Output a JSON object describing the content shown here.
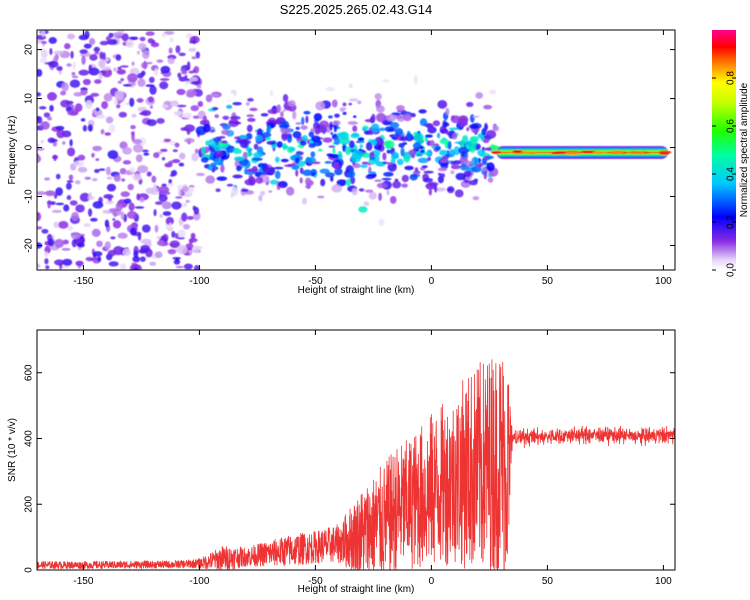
{
  "chart_data": [
    {
      "type": "heatmap",
      "title": "S225.2025.265.02.43.G14",
      "xlabel": "Height of straight line (km)",
      "ylabel": "Frequency (Hz)",
      "xlim": [
        -170,
        105
      ],
      "ylim": [
        -25,
        24
      ],
      "xticks": [
        -150,
        -100,
        -50,
        0,
        50,
        100
      ],
      "yticks": [
        -20,
        -10,
        0,
        10,
        20
      ],
      "colorbar": {
        "label": "Normalized spectral amplitude",
        "range": [
          0,
          1
        ],
        "ticks": [
          "0.0",
          "0.2",
          "0.4",
          "0.6",
          "0.8"
        ],
        "tick_values": [
          0,
          0.2,
          0.4,
          0.6,
          0.8
        ]
      },
      "regions": [
        {
          "x": [
            -170,
            -100
          ],
          "freq_center": 0,
          "freq_spread": 24,
          "amplitude": 0.1,
          "pattern": "diffuse noise"
        },
        {
          "x": [
            -100,
            28
          ],
          "freq_center": 0,
          "freq_spread": 10,
          "amplitude": 0.25,
          "pattern": "scattered blobs"
        },
        {
          "x": [
            28,
            102
          ],
          "freq_center": -1,
          "freq_spread": 1,
          "amplitude": 0.95,
          "pattern": "narrow tone"
        }
      ]
    },
    {
      "type": "line",
      "title": "",
      "xlabel": "Height of straight line (km)",
      "ylabel": "SNR (10 * v/v)",
      "xlim": [
        -170,
        105
      ],
      "ylim": [
        0,
        730
      ],
      "xticks": [
        -150,
        -100,
        -50,
        0,
        50,
        100
      ],
      "yticks": [
        0,
        200,
        400,
        600
      ],
      "color": "#ee3333",
      "series": [
        {
          "name": "SNR",
          "x": [
            -170,
            -150,
            -130,
            -110,
            -100,
            -90,
            -80,
            -70,
            -60,
            -50,
            -40,
            -30,
            -25,
            -20,
            -15,
            -10,
            -5,
            0,
            5,
            10,
            15,
            20,
            25,
            30,
            33,
            35,
            40,
            50,
            60,
            70,
            80,
            90,
            100,
            105
          ],
          "mean": [
            15,
            15,
            16,
            17,
            20,
            35,
            40,
            50,
            60,
            70,
            80,
            110,
            130,
            150,
            180,
            200,
            220,
            240,
            260,
            280,
            300,
            310,
            320,
            330,
            330,
            400,
            405,
            405,
            410,
            410,
            410,
            405,
            410,
            410
          ],
          "spread": [
            12,
            12,
            12,
            12,
            15,
            40,
            30,
            40,
            50,
            50,
            60,
            140,
            160,
            180,
            200,
            200,
            220,
            240,
            250,
            260,
            300,
            320,
            340,
            360,
            360,
            25,
            25,
            25,
            25,
            25,
            25,
            25,
            25,
            25
          ]
        }
      ]
    }
  ]
}
